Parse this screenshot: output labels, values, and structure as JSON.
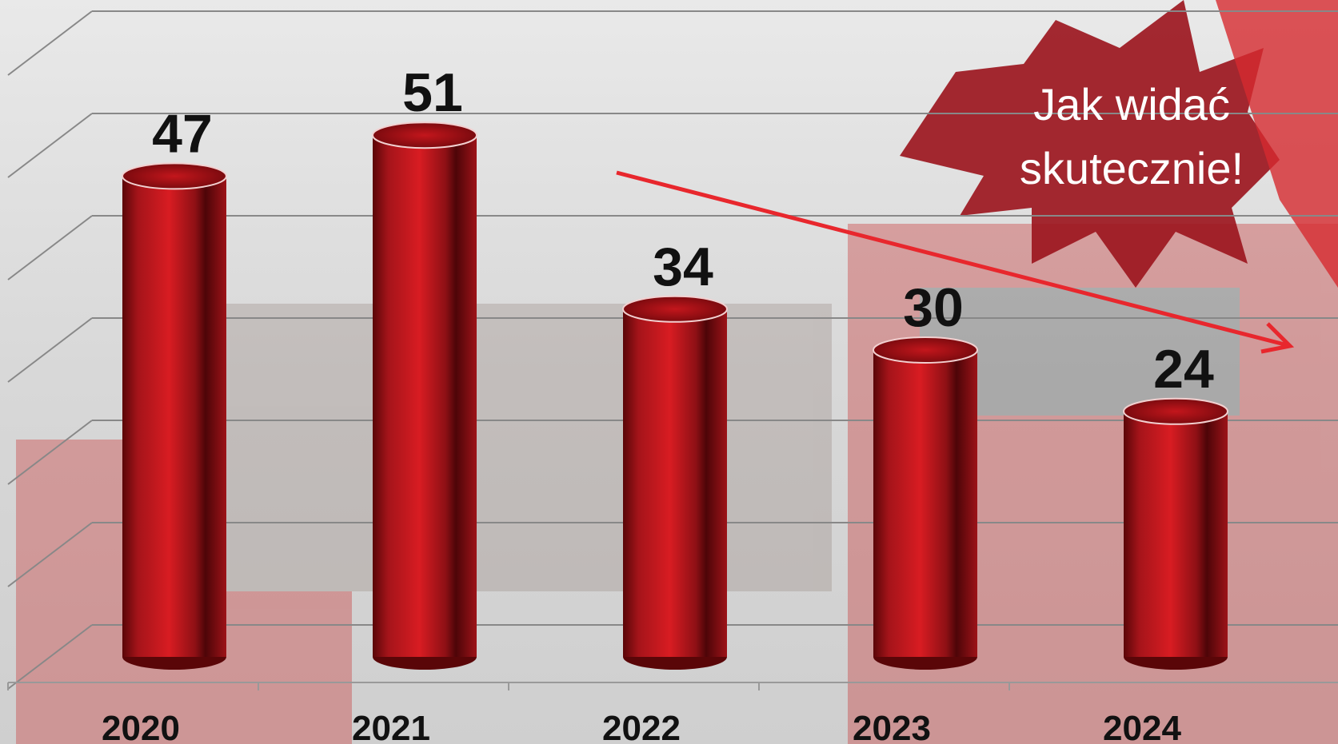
{
  "chart_data": {
    "type": "bar",
    "categories": [
      "2020",
      "2021",
      "2022",
      "2023",
      "2024"
    ],
    "values": [
      47,
      51,
      34,
      30,
      24
    ],
    "color": "#b0161b",
    "ylim": [
      0,
      60
    ],
    "yticks": [
      0,
      10,
      20,
      30,
      40,
      50,
      60
    ],
    "grid": true,
    "annotation": [
      "Jak widać",
      "skutecznie!"
    ]
  }
}
